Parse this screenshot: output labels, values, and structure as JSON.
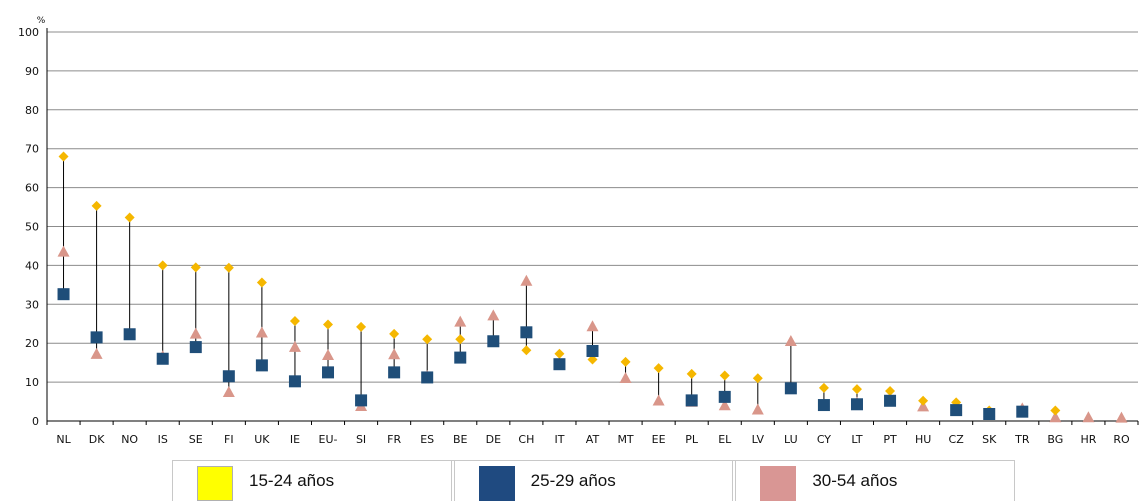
{
  "chart_data": {
    "type": "scatter",
    "ylabel": "%",
    "ylim": [
      0,
      100
    ],
    "yticks": [
      0,
      10,
      20,
      30,
      40,
      50,
      60,
      70,
      80,
      90,
      100
    ],
    "grid": true,
    "legend_position": "bottom",
    "categories": [
      "NL",
      "DK",
      "NO",
      "IS",
      "SE",
      "FI",
      "UK",
      "IE",
      "EU-",
      "SI",
      "FR",
      "ES",
      "BE",
      "DE",
      "CH",
      "IT",
      "AT",
      "MT",
      "EE",
      "PL",
      "EL",
      "LV",
      "LU",
      "CY",
      "LT",
      "PT",
      "HU",
      "CZ",
      "SK",
      "TR",
      "BG",
      "HR",
      "RO"
    ],
    "series": [
      {
        "name": "15-24 años",
        "color": "#f5b700",
        "marker": "diamond",
        "values": [
          68,
          55.3,
          52.3,
          40,
          39.5,
          39.4,
          35.6,
          25.7,
          24.8,
          24.2,
          22.4,
          21,
          21,
          20.3,
          18.2,
          17.3,
          15.8,
          15.2,
          13.6,
          12.1,
          11.7,
          11,
          null,
          8.5,
          8.2,
          7.7,
          5.2,
          4.8,
          2.7,
          2.5,
          2.7,
          null,
          null
        ]
      },
      {
        "name": "25-29 años",
        "color": "#1f4e79",
        "marker": "square",
        "values": [
          32.6,
          21.5,
          22.3,
          16,
          19,
          11.5,
          14.3,
          10.2,
          12.5,
          5.3,
          12.5,
          11.2,
          16.3,
          20.5,
          22.8,
          14.6,
          18,
          null,
          null,
          5.3,
          6.2,
          null,
          8.4,
          4.1,
          4.3,
          5.2,
          null,
          2.8,
          1.8,
          2.4,
          null,
          null,
          null
        ]
      },
      {
        "name": "30-54 años",
        "color": "#d9968a",
        "marker": "triangle",
        "values": [
          43.3,
          17,
          21.9,
          16.4,
          22.2,
          7.2,
          22.5,
          18.8,
          16.7,
          3.6,
          16.9,
          11.3,
          25.3,
          26.9,
          35.8,
          14.2,
          24.1,
          10.8,
          5,
          4.7,
          3.8,
          2.7,
          20.3,
          3.7,
          4.5,
          4.8,
          3.5,
          3.1,
          2.2,
          3,
          0.7,
          0.7,
          0.6
        ]
      }
    ]
  },
  "legend": {
    "items": [
      {
        "label": "15-24 años",
        "swatch_color": "#ffff00"
      },
      {
        "label": "25-29 años",
        "swatch_color": "#1f4a80"
      },
      {
        "label": "30-54 años",
        "swatch_color": "#d99694"
      }
    ]
  }
}
